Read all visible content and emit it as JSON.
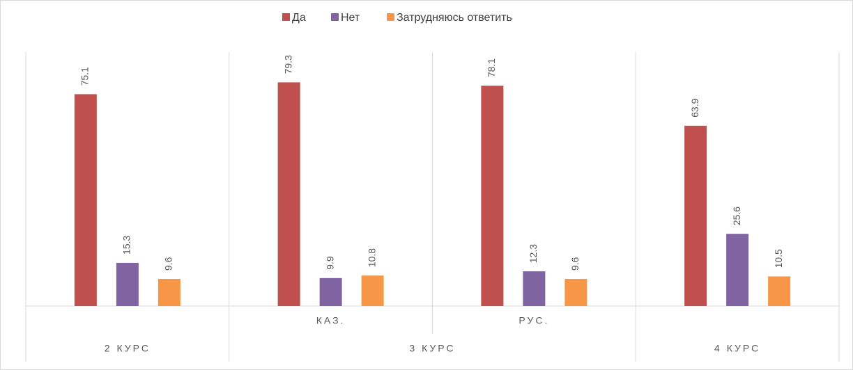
{
  "chart_data": {
    "type": "bar",
    "categories": [
      null,
      "КАЗ.",
      "РУС.",
      null
    ],
    "groups": [
      {
        "label": "2 КУРС",
        "span": 1
      },
      {
        "label": "3 КУРС",
        "span": 2
      },
      {
        "label": "4 КУРС",
        "span": 1
      }
    ],
    "series": [
      {
        "name": "Да",
        "color": "#c0504d",
        "values": [
          75.1,
          79.3,
          78.1,
          63.9
        ]
      },
      {
        "name": "Нет",
        "color": "#8064a2",
        "values": [
          15.3,
          9.9,
          12.3,
          25.6
        ]
      },
      {
        "name": "Затрудняюсь ответить",
        "color": "#f79646",
        "values": [
          9.6,
          10.8,
          9.6,
          10.5
        ]
      }
    ],
    "ylim": [
      0,
      90
    ],
    "legend": "top"
  }
}
